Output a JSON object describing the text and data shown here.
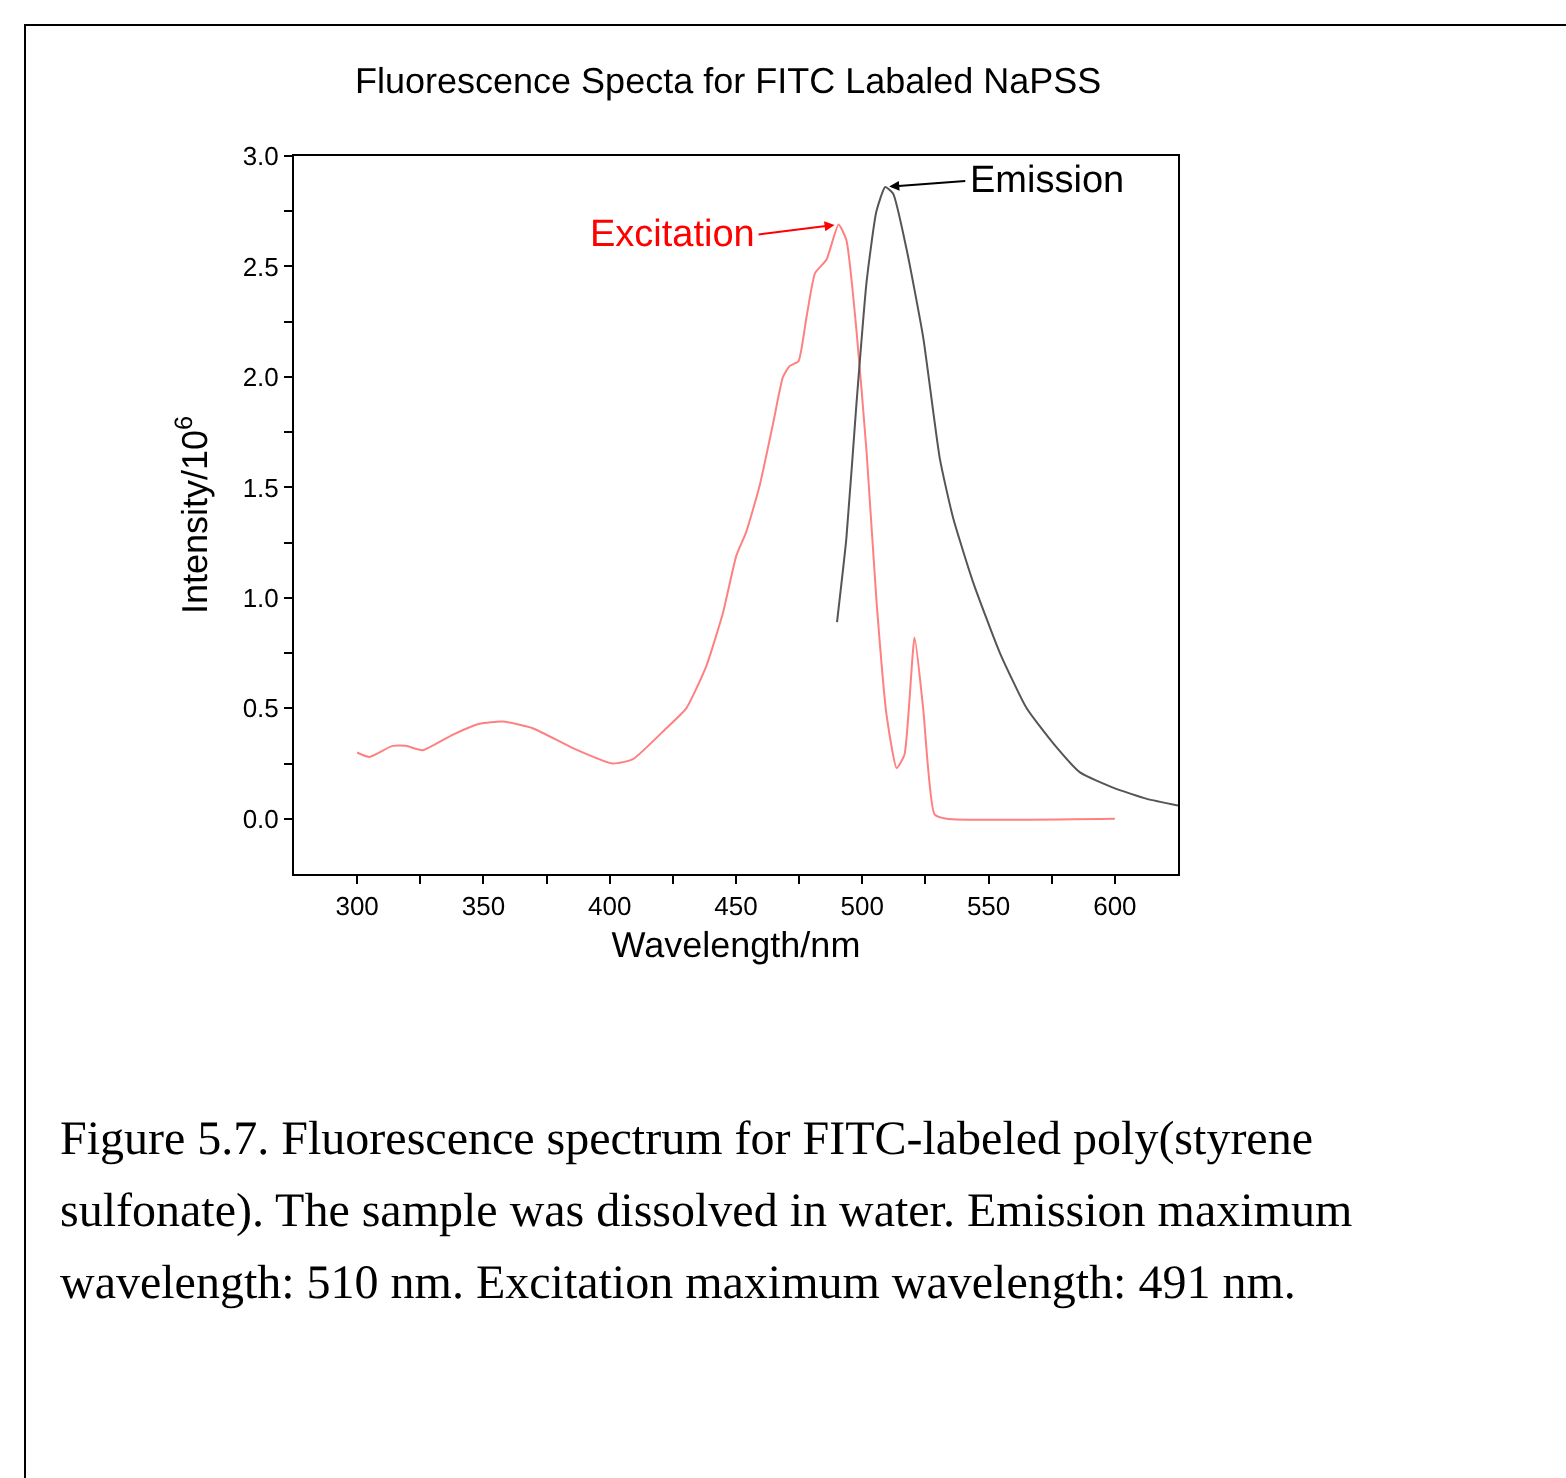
{
  "chart_data": {
    "type": "line",
    "title": "Fluorescence Specta for FITC Labaled NaPSS",
    "xlabel": "Wavelength/nm",
    "ylabel": "Intensity/10$^{6}$",
    "xlim": [
      275,
      625
    ],
    "ylim": [
      -0.25,
      3.0
    ],
    "xticks": [
      300,
      {
        "value": 325,
        "label": null
      },
      350,
      {
        "value": 375,
        "label": null
      },
      400,
      {
        "value": 425,
        "label": null
      },
      450,
      {
        "value": 475,
        "label": null
      },
      500,
      {
        "value": 525,
        "label": null
      },
      550,
      {
        "value": 575,
        "label": null
      },
      600
    ],
    "yticks": [
      {
        "value": 0,
        "label": "0.0"
      },
      {
        "value": 0.25,
        "label": null
      },
      {
        "value": 0.5,
        "label": "0.5"
      },
      {
        "value": 0.75,
        "label": null
      },
      {
        "value": 1,
        "label": "1.0"
      },
      {
        "value": 1.25,
        "label": null
      },
      {
        "value": 1.5,
        "label": "1.5"
      },
      {
        "value": 1.75,
        "label": null
      },
      {
        "value": 2,
        "label": "2.0"
      },
      {
        "value": 2.25,
        "label": null
      },
      {
        "value": 2.5,
        "label": "2.5"
      },
      {
        "value": 2.75,
        "label": null
      },
      {
        "value": 3,
        "label": "3.0"
      }
    ],
    "grid": false,
    "marker": "none",
    "line_style": "solid",
    "series": [
      {
        "color": "#ff8080",
        "x": [
          300,
          304.8,
          314,
          319.3,
          325.9,
          337.8,
          348.4,
          357.6,
          369.5,
          385.4,
          401.2,
          409.2,
          422.4,
          430.3,
          438.2,
          444.8,
          450.1,
          454.1,
          459.4,
          464.7,
          468.6,
          471.3,
          474.7,
          477.9,
          481.3,
          485.8,
          490.6,
          493.7,
          497.7,
          501.7,
          505.6,
          509.6,
          513.6,
          516.7,
          520.7,
          524.1,
          528.6,
          533.4,
          600
        ],
        "values": [
          0.3,
          0.28,
          0.33,
          0.33,
          0.31,
          0.38,
          0.43,
          0.44,
          0.41,
          0.32,
          0.25,
          0.27,
          0.41,
          0.5,
          0.69,
          0.93,
          1.19,
          1.3,
          1.51,
          1.79,
          2.0,
          2.05,
          2.07,
          2.27,
          2.47,
          2.53,
          2.69,
          2.62,
          2.21,
          1.66,
          0.99,
          0.47,
          0.23,
          0.29,
          0.82,
          0.5,
          0.02,
          0,
          0
        ]
      },
      {
        "color": "#555555",
        "x": [
          490,
          493.7,
          497.7,
          501.7,
          505.6,
          509.1,
          512.2,
          517.5,
          524.1,
          530.7,
          536,
          543.9,
          554.5,
          565.1,
          575.7,
          586.2,
          599.5,
          612.7,
          625
        ],
        "values": [
          0.89,
          1.27,
          1.88,
          2.43,
          2.75,
          2.86,
          2.83,
          2.58,
          2.18,
          1.63,
          1.36,
          1.07,
          0.75,
          0.5,
          0.34,
          0.21,
          0.14,
          0.09,
          0.06
        ]
      }
    ],
    "annotations": [
      {
        "text": "Excitation",
        "x": 490.6,
        "y": 2.69
      },
      {
        "text": "Emission",
        "x": 509.1,
        "y": 2.86
      },
      "Figure 5.7. Fluorescence spectrum for FITC-labeled poly(styrene sulfonate). The sample was dissolved in water. Emission maximum wavelength: 510 nm. Excitation maximum wavelength: 491 nm."
    ]
  }
}
